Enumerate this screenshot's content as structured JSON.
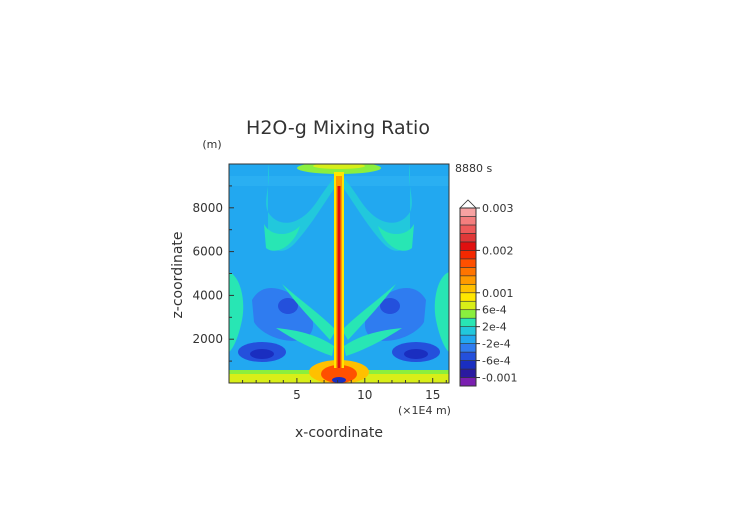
{
  "chart_data": {
    "type": "heatmap",
    "title": "H2O-g Mixing Ratio",
    "xlabel": "x-coordinate",
    "ylabel": "z-coordinate",
    "y_unit": "(m)",
    "x_unit": "(×1E4 m)",
    "time_label": "8880 s",
    "xlim": [
      0,
      16.2
    ],
    "ylim": [
      0,
      10000
    ],
    "x_ticks": [
      5,
      10,
      15
    ],
    "y_ticks": [
      2000,
      4000,
      6000,
      8000
    ],
    "y_tick_labels": [
      "2000",
      "4000",
      "6000",
      "8000"
    ],
    "x_tick_labels": [
      "5",
      "10",
      "15"
    ],
    "colorbar": {
      "labels": [
        "0.003",
        "0.002",
        "0.001",
        "6e-4",
        "2e-4",
        "-2e-4",
        "-6e-4",
        "-0.001"
      ],
      "label_positions": [
        0.003,
        0.002,
        0.001,
        0.0006,
        0.0002,
        -0.0002,
        -0.0006,
        -0.001
      ],
      "levels": [
        -0.0012,
        -0.001,
        -0.0008,
        -0.0006,
        -0.0004,
        -0.0002,
        0,
        0.0002,
        0.0004,
        0.0006,
        0.0008,
        0.001,
        0.0012,
        0.0014,
        0.0016,
        0.0018,
        0.002,
        0.0022,
        0.0024,
        0.0026,
        0.0028,
        0.003
      ],
      "colors": [
        "#7a1fb0",
        "#2a1aa0",
        "#1a2ec0",
        "#2450dc",
        "#2f7cf0",
        "#22a8f0",
        "#22c8dc",
        "#28e6b4",
        "#8aef3e",
        "#d8ee18",
        "#ffe600",
        "#ffc000",
        "#ff9a00",
        "#ff7400",
        "#ff5000",
        "#f42800",
        "#e01010",
        "#e03838",
        "#ee5a5a",
        "#f47e7e",
        "#f7a2a2"
      ],
      "extend": "max"
    }
  }
}
